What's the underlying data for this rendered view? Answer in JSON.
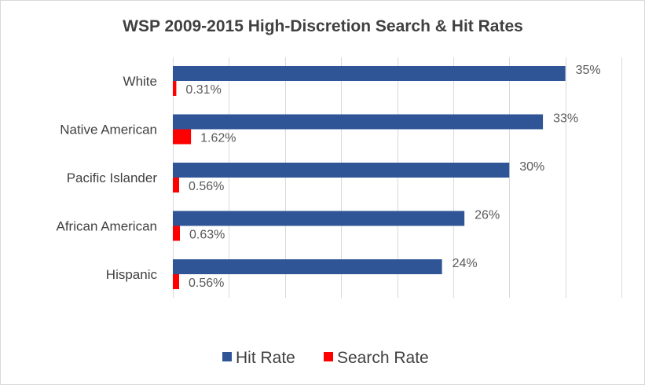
{
  "chart_data": {
    "type": "bar",
    "orientation": "horizontal",
    "title": "WSP 2009-2015 High-Discretion Search & Hit Rates",
    "categories": [
      "White",
      "Native American",
      "Pacific Islander",
      "African American",
      "Hispanic"
    ],
    "series": [
      {
        "name": "Hit Rate",
        "values": [
          35,
          33,
          30,
          26,
          24
        ],
        "labels": [
          "35%",
          "33%",
          "30%",
          "26%",
          "24%"
        ],
        "color": "#2f5597"
      },
      {
        "name": "Search Rate",
        "values": [
          0.31,
          1.62,
          0.56,
          0.63,
          0.56
        ],
        "labels": [
          "0.31%",
          "1.62%",
          "0.56%",
          "0.63%",
          "0.56%"
        ],
        "color": "#ff0000"
      }
    ],
    "xlim": [
      0,
      40
    ],
    "unit": "%",
    "grid": true,
    "legend_position": "bottom"
  }
}
